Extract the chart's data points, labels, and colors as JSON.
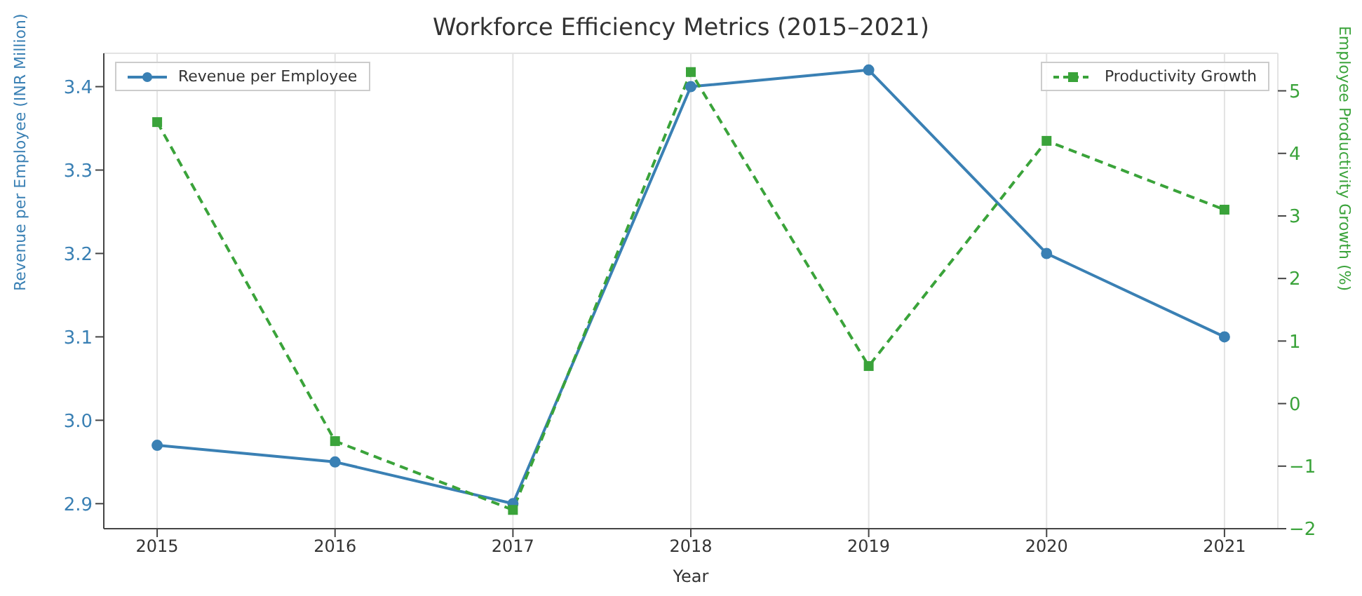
{
  "chart_data": {
    "type": "line",
    "title": "Workforce Efficiency Metrics (2015–2021)",
    "xlabel": "Year",
    "ylabel": "Revenue per Employee (INR Million)",
    "y2label": "Employee Productivity Growth (%)",
    "categories": [
      "2015",
      "2016",
      "2017",
      "2018",
      "2019",
      "2020",
      "2021"
    ],
    "series": [
      {
        "name": "Revenue per Employee",
        "color": "#3a80b4",
        "values": [
          2.97,
          2.95,
          2.9,
          3.4,
          3.42,
          3.2,
          3.1
        ],
        "marker": "circle",
        "line_style": "solid"
      },
      {
        "name": "Productivity Growth",
        "color": "#3aa33a",
        "values": [
          4.5,
          -0.6,
          -1.7,
          5.3,
          0.6,
          4.2,
          3.1
        ],
        "axis": "y2",
        "marker": "square",
        "line_style": "dashed"
      }
    ],
    "ylim": [
      2.87,
      3.44
    ],
    "yticks": [
      2.9,
      {
        "value": 3.0,
        "label": "3.0"
      },
      3.1,
      3.2,
      3.3,
      3.4
    ],
    "y2lim": [
      -2,
      5.6
    ],
    "y2ticks": [
      -2,
      -1,
      0,
      1,
      2,
      3,
      4,
      5
    ],
    "grid": true,
    "legend": "top"
  }
}
